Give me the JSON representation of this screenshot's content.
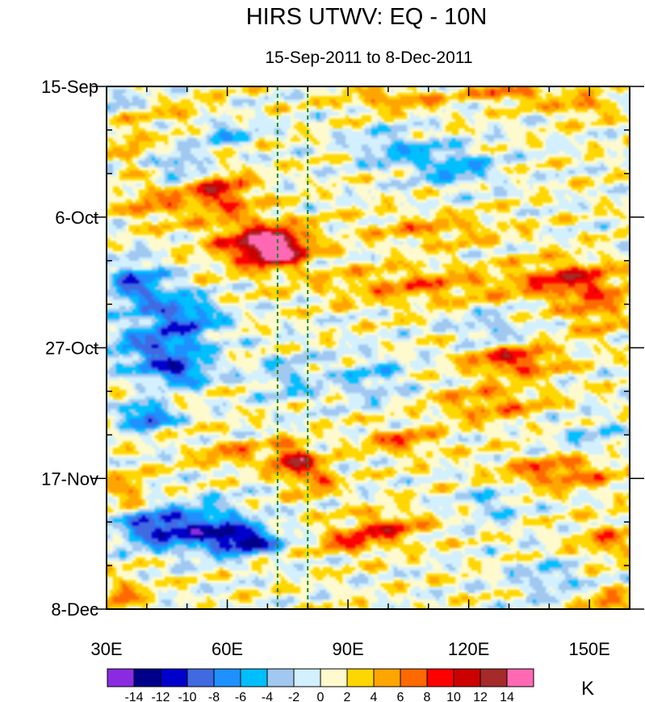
{
  "chart_data": {
    "type": "heatmap",
    "title": "HIRS UTWV: EQ - 10N",
    "subtitle": "15-Sep-2011 to 8-Dec-2011",
    "x_axis": {
      "range": [
        30,
        160
      ],
      "ticks": [
        30,
        60,
        90,
        120,
        150
      ],
      "tick_labels": [
        "30E",
        "60E",
        "90E",
        "120E",
        "150E"
      ],
      "minor_step": 10
    },
    "y_axis": {
      "range_days": [
        0,
        84
      ],
      "direction": "time increases downward",
      "ticks": [
        0,
        21,
        42,
        63,
        84
      ],
      "tick_labels": [
        "15-Sep",
        "6-Oct",
        "27-Oct",
        "17-Nov",
        "8-Dec"
      ],
      "minor_step_days": 7
    },
    "reference_lines": [
      {
        "lon": 72.5,
        "style": "dashed",
        "color": "#1a8a1a"
      },
      {
        "lon": 80,
        "style": "dashed",
        "color": "#1a8a1a"
      }
    ],
    "colorbar": {
      "unit": "K",
      "levels": [
        -14,
        -12,
        -10,
        -8,
        -6,
        -4,
        -2,
        0,
        2,
        4,
        6,
        8,
        10,
        12,
        14
      ],
      "level_labels": [
        "-14",
        "-12",
        "-10",
        "-8",
        "-6",
        "-4",
        "-2",
        "0",
        "2",
        "4",
        "6",
        "8",
        "10",
        "12",
        "14"
      ],
      "colors": [
        "#8a2be2",
        "#00008b",
        "#0000cd",
        "#4169e1",
        "#1e90ff",
        "#00bfff",
        "#a0c8f0",
        "#d2f0ff",
        "#fffacd",
        "#ffd700",
        "#ffa500",
        "#ff6a00",
        "#ff0000",
        "#cd0000",
        "#a52a2a",
        "#ff69b4"
      ]
    },
    "anomaly_features": [
      {
        "lon": 72,
        "day": 26,
        "value": 14,
        "sx": 7,
        "sy": 2.6
      },
      {
        "lon": 67,
        "day": 25,
        "value": 8,
        "sx": 12,
        "sy": 4
      },
      {
        "lon": 58,
        "day": 17,
        "value": 9,
        "sx": 8,
        "sy": 3.2
      },
      {
        "lon": 42,
        "day": 19,
        "value": 5,
        "sx": 8,
        "sy": 3
      },
      {
        "lon": 52,
        "day": 5,
        "value": 4,
        "sx": 9,
        "sy": 2.5
      },
      {
        "lon": 36,
        "day": 9,
        "value": 4,
        "sx": 4,
        "sy": 4
      },
      {
        "lon": 102,
        "day": 2,
        "value": 5,
        "sx": 12,
        "sy": 1.8
      },
      {
        "lon": 130,
        "day": 1,
        "value": 7,
        "sx": 8,
        "sy": 1.5
      },
      {
        "lon": 148,
        "day": 3,
        "value": 5,
        "sx": 8,
        "sy": 2
      },
      {
        "lon": 108,
        "day": 32,
        "value": 5,
        "sx": 25,
        "sy": 3
      },
      {
        "lon": 145,
        "day": 31,
        "value": 8,
        "sx": 12,
        "sy": 3
      },
      {
        "lon": 152,
        "day": 36,
        "value": 5,
        "sx": 8,
        "sy": 4
      },
      {
        "lon": 131,
        "day": 44,
        "value": 9,
        "sx": 11,
        "sy": 2.4
      },
      {
        "lon": 125,
        "day": 51,
        "value": 5,
        "sx": 14,
        "sy": 3
      },
      {
        "lon": 76,
        "day": 60,
        "value": 10,
        "sx": 5,
        "sy": 2.6
      },
      {
        "lon": 82,
        "day": 63,
        "value": 6,
        "sx": 5,
        "sy": 3
      },
      {
        "lon": 61,
        "day": 59,
        "value": 5,
        "sx": 9,
        "sy": 2
      },
      {
        "lon": 103,
        "day": 57,
        "value": 6,
        "sx": 9,
        "sy": 2
      },
      {
        "lon": 100,
        "day": 71,
        "value": 7,
        "sx": 9,
        "sy": 2.5
      },
      {
        "lon": 90,
        "day": 73,
        "value": 6,
        "sx": 8,
        "sy": 2
      },
      {
        "lon": 142,
        "day": 62,
        "value": 7,
        "sx": 14,
        "sy": 2.5
      },
      {
        "lon": 155,
        "day": 73,
        "value": 5,
        "sx": 8,
        "sy": 3
      },
      {
        "lon": 35,
        "day": 65,
        "value": 5,
        "sx": 5,
        "sy": 3
      },
      {
        "lon": 34,
        "day": 82,
        "value": 5,
        "sx": 6,
        "sy": 3
      },
      {
        "lon": 155,
        "day": 83,
        "value": 6,
        "sx": 6,
        "sy": 2
      },
      {
        "lon": 112,
        "day": 23,
        "value": 4,
        "sx": 18,
        "sy": 2.5
      },
      {
        "lon": 42,
        "day": 71,
        "value": -11,
        "sx": 9,
        "sy": 3
      },
      {
        "lon": 56,
        "day": 71,
        "value": -9,
        "sx": 10,
        "sy": 4
      },
      {
        "lon": 65,
        "day": 73,
        "value": -12,
        "sx": 8,
        "sy": 2
      },
      {
        "lon": 43,
        "day": 42,
        "value": -9,
        "sx": 12,
        "sy": 3.5
      },
      {
        "lon": 50,
        "day": 37,
        "value": -8,
        "sx": 9,
        "sy": 3
      },
      {
        "lon": 40,
        "day": 53,
        "value": -11,
        "sx": 6,
        "sy": 2
      },
      {
        "lon": 48,
        "day": 46,
        "value": -9,
        "sx": 8,
        "sy": 2
      },
      {
        "lon": 40,
        "day": 33,
        "value": -6,
        "sx": 9,
        "sy": 4
      },
      {
        "lon": 36,
        "day": 31,
        "value": -5,
        "sx": 5,
        "sy": 3
      },
      {
        "lon": 49,
        "day": 13,
        "value": -6,
        "sx": 7,
        "sy": 2
      },
      {
        "lon": 58,
        "day": 7,
        "value": -6,
        "sx": 8,
        "sy": 2.5
      },
      {
        "lon": 102,
        "day": 10,
        "value": -5,
        "sx": 10,
        "sy": 3
      },
      {
        "lon": 117,
        "day": 13,
        "value": -6,
        "sx": 10,
        "sy": 3
      },
      {
        "lon": 96,
        "day": 47,
        "value": -4,
        "sx": 10,
        "sy": 4
      },
      {
        "lon": 125,
        "day": 39,
        "value": -4,
        "sx": 8,
        "sy": 3
      },
      {
        "lon": 75,
        "day": 47,
        "value": -4,
        "sx": 8,
        "sy": 4
      },
      {
        "lon": 126,
        "day": 67,
        "value": -4,
        "sx": 7,
        "sy": 3
      },
      {
        "lon": 140,
        "day": 79,
        "value": -4,
        "sx": 9,
        "sy": 3
      },
      {
        "lon": 150,
        "day": 56,
        "value": -3,
        "sx": 10,
        "sy": 3
      },
      {
        "lon": 33,
        "day": 2,
        "value": -4,
        "sx": 4,
        "sy": 2
      }
    ]
  }
}
